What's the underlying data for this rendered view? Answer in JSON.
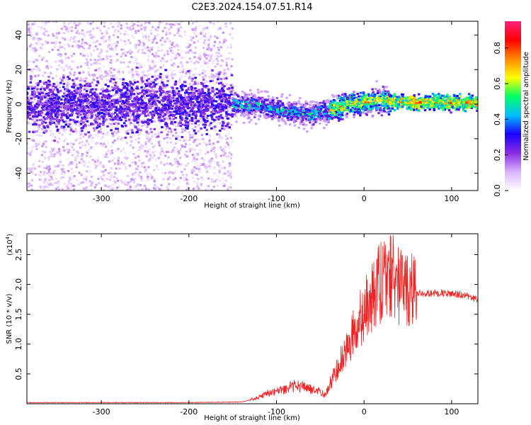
{
  "title": "C2E3.2024.154.07.51.R14",
  "chart_data": [
    {
      "type": "heatmap",
      "xlabel": "Height of straight line (km)",
      "ylabel": "Frequency (Hz)",
      "xlim": [
        -385,
        130
      ],
      "ylim": [
        -50,
        48
      ],
      "x_ticks": [
        -300,
        -200,
        -100,
        0,
        100
      ],
      "y_ticks": [
        -40,
        -20,
        0,
        20,
        40
      ],
      "colorbar": {
        "label": "Normalized spectral amplitude",
        "range": [
          0,
          0.95
        ],
        "ticks": [
          0.0,
          0.2,
          0.4,
          0.6,
          0.8
        ],
        "colors": [
          "#ffffff",
          "#d9b3ff",
          "#8a2be2",
          "#1a00ff",
          "#00bfff",
          "#00ff66",
          "#ffff00",
          "#ff8800",
          "#ff0000",
          "#ff2080"
        ]
      },
      "band_center": [
        [
          -385,
          0
        ],
        [
          -150,
          0
        ],
        [
          -120,
          -1
        ],
        [
          -100,
          -3
        ],
        [
          -80,
          -5
        ],
        [
          -60,
          -6
        ],
        [
          -40,
          -4
        ],
        [
          -20,
          0
        ],
        [
          0,
          1
        ],
        [
          20,
          2
        ],
        [
          40,
          1
        ],
        [
          60,
          1
        ],
        [
          100,
          1
        ],
        [
          130,
          1
        ]
      ],
      "noise_region_xmax": -150,
      "grid": false
    },
    {
      "type": "line",
      "xlabel": "Height of straight line (km)",
      "ylabel": "SNR (10 * v/v)",
      "y_scale_label": "(x10",
      "y_scale_exp": "4",
      "y_scale_close": ")",
      "xlim": [
        -385,
        130
      ],
      "ylim": [
        0,
        2.85
      ],
      "x_ticks": [
        -300,
        -200,
        -100,
        0,
        100
      ],
      "y_ticks": [
        0.5,
        1.0,
        1.5,
        2.0,
        2.5
      ],
      "color": "#ee2222",
      "grid": false,
      "series": [
        {
          "points": [
            [
              -385,
              0.02
            ],
            [
              -300,
              0.02
            ],
            [
              -200,
              0.02
            ],
            [
              -140,
              0.03
            ],
            [
              -125,
              0.08
            ],
            [
              -110,
              0.18
            ],
            [
              -100,
              0.2
            ],
            [
              -90,
              0.25
            ],
            [
              -80,
              0.3
            ],
            [
              -70,
              0.28
            ],
            [
              -60,
              0.25
            ],
            [
              -50,
              0.2
            ],
            [
              -45,
              0.15
            ],
            [
              -40,
              0.3
            ],
            [
              -30,
              0.6
            ],
            [
              -20,
              0.95
            ],
            [
              -10,
              1.25
            ],
            [
              0,
              1.55
            ],
            [
              10,
              1.8
            ],
            [
              20,
              2.05
            ],
            [
              30,
              2.15
            ],
            [
              40,
              2.0
            ],
            [
              50,
              1.9
            ],
            [
              60,
              1.85
            ],
            [
              80,
              1.85
            ],
            [
              100,
              1.85
            ],
            [
              115,
              1.82
            ],
            [
              130,
              1.75
            ]
          ]
        }
      ]
    }
  ]
}
